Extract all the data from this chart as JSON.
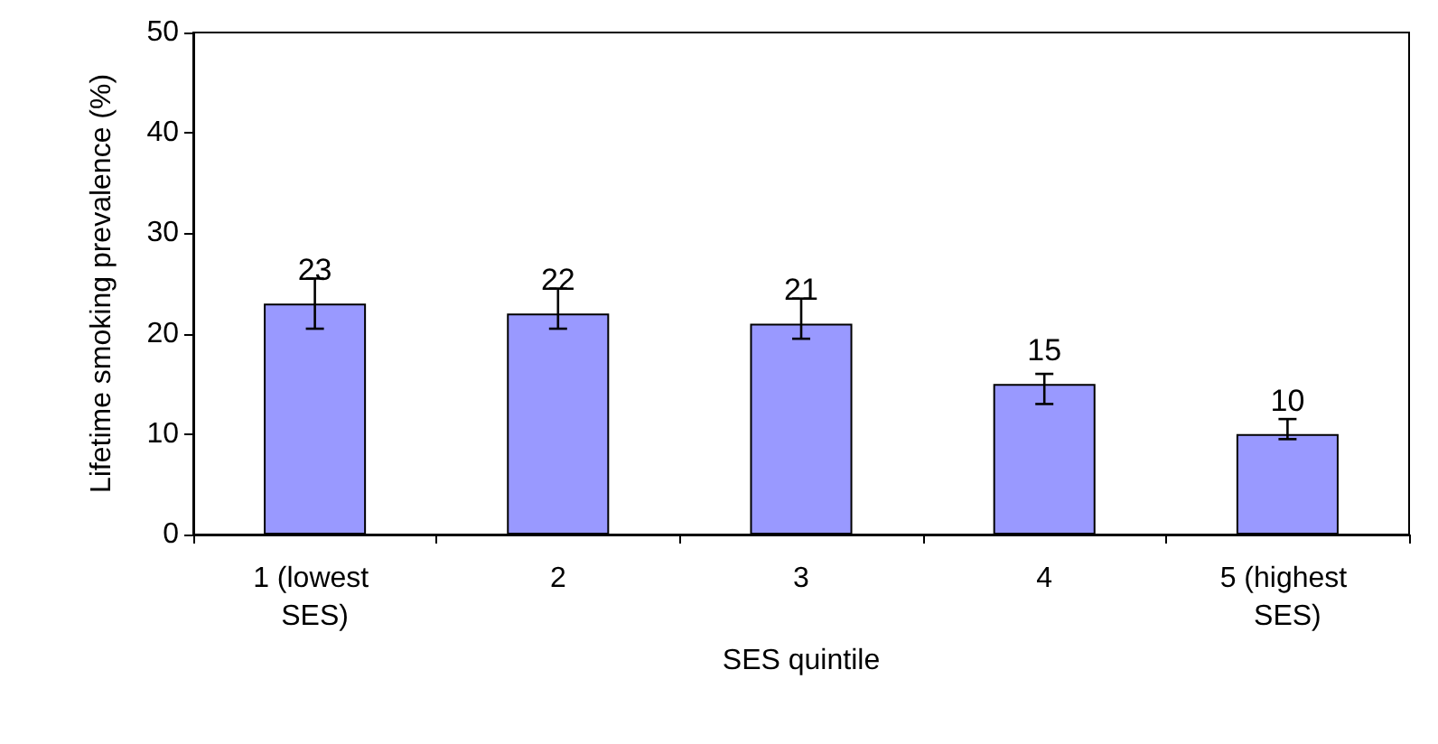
{
  "chart_data": {
    "type": "bar",
    "xlabel": "SES quintile",
    "ylabel": "Lifetime smoking prevalence (%)",
    "categories": [
      "1 (lowest SES)",
      "2",
      "3",
      "4",
      "5 (highest SES)"
    ],
    "values": [
      23,
      22,
      21,
      15,
      10
    ],
    "color": "#9999ff",
    "errors": [
      [
        20.5,
        25.5
      ],
      [
        20.5,
        24.5
      ],
      [
        19.5,
        23.5
      ],
      [
        13,
        16
      ],
      [
        9.5,
        11.5
      ]
    ],
    "data_labels": true,
    "ylim": [
      0,
      50
    ],
    "yticks": [
      0,
      10,
      20,
      30,
      40,
      50
    ],
    "grid": false
  }
}
